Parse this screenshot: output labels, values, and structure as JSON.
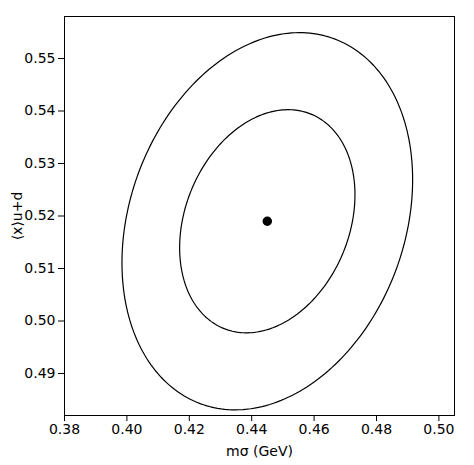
{
  "chart_data": {
    "type": "ellipse",
    "xlabel": "mσ (GeV)",
    "ylabel": "⟨x⟩u+d",
    "xlim": [
      0.38,
      0.505
    ],
    "ylim": [
      0.482,
      0.558
    ],
    "xticks": [
      0.38,
      {
        "value": 0.4,
        "label": "0.40"
      },
      0.42,
      0.44,
      0.46,
      0.48,
      {
        "value": 0.5,
        "label": "0.50"
      }
    ],
    "yticks": [
      0.49,
      {
        "value": 0.5,
        "label": "0.50"
      },
      0.51,
      0.52,
      0.53,
      0.54,
      0.55
    ],
    "center_x": 0.445,
    "center_y": 0.519,
    "marker": "circle",
    "color": "#000000",
    "ellipses": [
      {
        "width": 0.096,
        "height": 0.068,
        "angle_deg": 20
      },
      {
        "width": 0.058,
        "height": 0.04,
        "angle_deg": 20
      }
    ]
  }
}
